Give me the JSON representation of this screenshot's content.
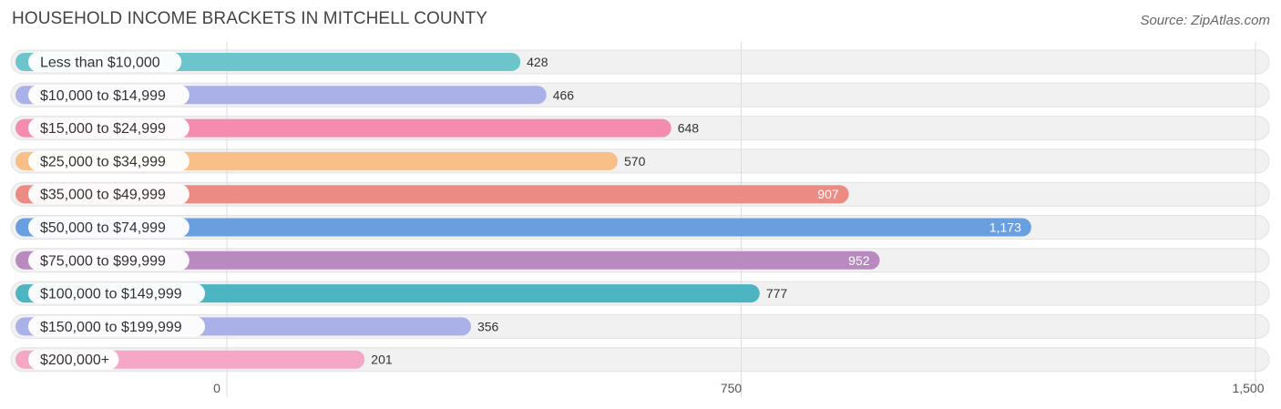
{
  "title": "HOUSEHOLD INCOME BRACKETS IN MITCHELL COUNTY",
  "source": "Source: ZipAtlas.com",
  "chart_data": {
    "type": "bar",
    "orientation": "horizontal",
    "title": "HOUSEHOLD INCOME BRACKETS IN MITCHELL COUNTY",
    "xlabel": "",
    "ylabel": "",
    "xlim": [
      0,
      1500
    ],
    "ticks": [
      0,
      750,
      1500
    ],
    "tick_labels": [
      "0",
      "750",
      "1,500"
    ],
    "grid": true,
    "categories": [
      "Less than $10,000",
      "$10,000 to $14,999",
      "$15,000 to $24,999",
      "$25,000 to $34,999",
      "$35,000 to $49,999",
      "$50,000 to $74,999",
      "$75,000 to $99,999",
      "$100,000 to $149,999",
      "$150,000 to $199,999",
      "$200,000+"
    ],
    "values": [
      428,
      466,
      648,
      570,
      907,
      1173,
      952,
      777,
      356,
      201
    ],
    "value_labels": [
      "428",
      "466",
      "648",
      "570",
      "907",
      "1,173",
      "952",
      "777",
      "356",
      "201"
    ],
    "colors": [
      "#6cc5cb",
      "#a9b1e8",
      "#f38caf",
      "#f9bf89",
      "#eb8b83",
      "#6a9fdf",
      "#b98abf",
      "#4db4c2",
      "#a9b1e8",
      "#f5a7c5"
    ]
  }
}
